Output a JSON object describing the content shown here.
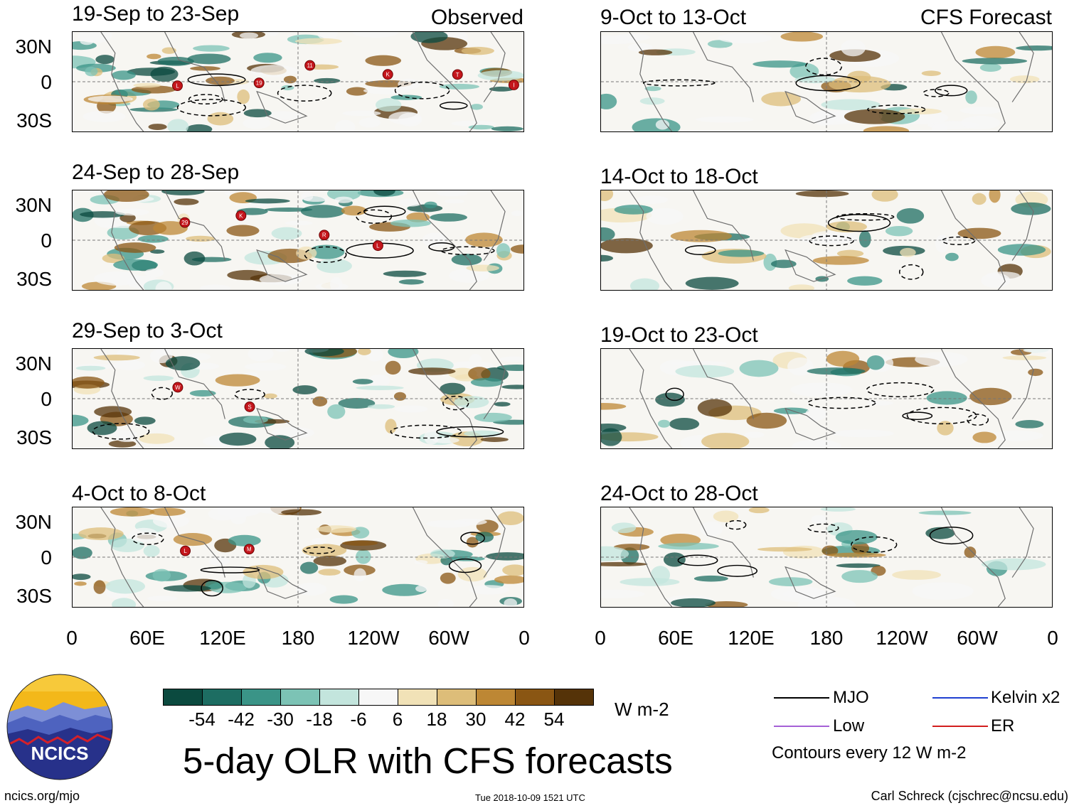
{
  "panels": [
    {
      "id": "p1",
      "title": "19-Sep to 23-Sep",
      "corner": "Observed",
      "storms": [
        "L",
        "19",
        "11",
        "K",
        "T",
        "I"
      ]
    },
    {
      "id": "p2",
      "title": "24-Sep to 28-Sep",
      "corner": "",
      "storms": [
        "29",
        "K",
        "R",
        "L"
      ]
    },
    {
      "id": "p3",
      "title": "29-Sep to 3-Oct",
      "corner": "",
      "storms": [
        "W",
        "S"
      ]
    },
    {
      "id": "p4",
      "title": "4-Oct to 8-Oct",
      "corner": "",
      "storms": [
        "L",
        "M"
      ]
    },
    {
      "id": "p5",
      "title": "9-Oct to 13-Oct",
      "corner": "CFS Forecast",
      "storms": []
    },
    {
      "id": "p6",
      "title": "14-Oct to 18-Oct",
      "corner": "",
      "storms": []
    },
    {
      "id": "p7",
      "title": "19-Oct to 23-Oct",
      "corner": "",
      "storms": []
    },
    {
      "id": "p8",
      "title": "24-Oct to 28-Oct",
      "corner": "",
      "storms": []
    }
  ],
  "lat_labels": [
    "30N",
    "0",
    "30S"
  ],
  "lon_labels": [
    "0",
    "60E",
    "120E",
    "180",
    "120W",
    "60W",
    "0"
  ],
  "colorbar": {
    "colors": [
      "#0b4a3f",
      "#1d6d62",
      "#3a9487",
      "#7cc3b5",
      "#c3e5dd",
      "#f7f7f7",
      "#f1e2b7",
      "#ddbd79",
      "#bd8734",
      "#8a5613",
      "#553308"
    ],
    "labels": [
      "-54",
      "-42",
      "-30",
      "-18",
      "-6",
      "6",
      "18",
      "30",
      "42",
      "54"
    ],
    "units": "W m-2"
  },
  "legend": {
    "items": [
      {
        "label": "MJO",
        "color": "#000000"
      },
      {
        "label": "Kelvin x2",
        "color": "#1f3fd1"
      },
      {
        "label": "Low",
        "color": "#a561d6"
      },
      {
        "label": "ER",
        "color": "#d21e1e"
      }
    ],
    "contours": "Contours every 12 W m-2"
  },
  "title": "5-day OLR with CFS forecasts",
  "logo_text": "NCICS",
  "footer": {
    "url": "ncics.org/mjo",
    "timestamp": "Tue 2018-10-09 1521 UTC",
    "credit": "Carl Schreck (cjschrec@ncsu.edu)"
  }
}
